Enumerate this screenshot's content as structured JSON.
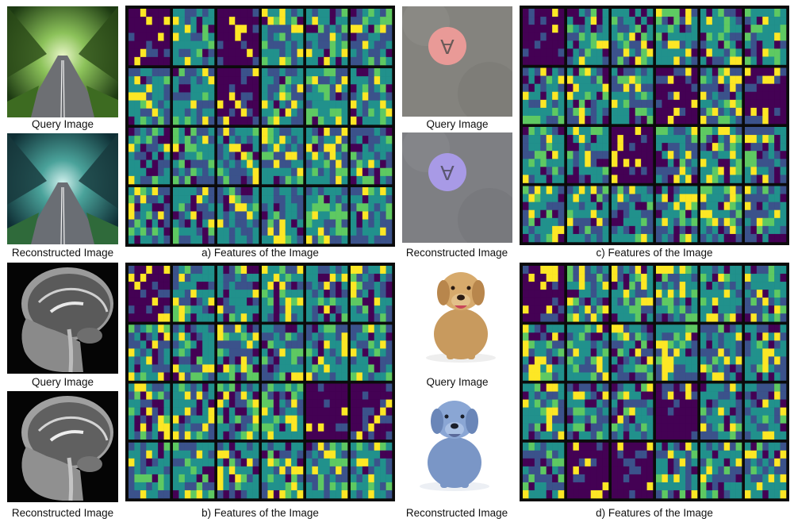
{
  "figure": {
    "panels": [
      {
        "id": "a",
        "query_caption": "Query Image",
        "reconstructed_caption": "Reconstructed Image",
        "features_caption": "a) Features of the Image",
        "query_image": "tree-tunnel-road-photo",
        "reconstructed_image": "tree-tunnel-road-photo-tinted",
        "grid": {
          "rows": 4,
          "cols": 6
        }
      },
      {
        "id": "b",
        "query_caption": "Query Image",
        "reconstructed_caption": "Reconstructed Image",
        "features_caption": "b) Features of the Image",
        "query_image": "brain-mri-sagittal",
        "reconstructed_image": "brain-mri-sagittal",
        "grid": {
          "rows": 4,
          "cols": 6
        }
      },
      {
        "id": "c",
        "query_caption": "Query Image",
        "reconstructed_caption": "Reconstructed Image",
        "features_caption": "c) Features of the Image",
        "query_image": "pink-disk-letter-a",
        "reconstructed_image": "purple-disk-letter-a",
        "grid": {
          "rows": 4,
          "cols": 6
        }
      },
      {
        "id": "d",
        "query_caption": "Query Image",
        "reconstructed_caption": "Reconstructed Image",
        "features_caption": "d) Features of the Image",
        "query_image": "sitting-dog-photo",
        "reconstructed_image": "sitting-dog-photo-blue",
        "grid": {
          "rows": 4,
          "cols": 6
        }
      }
    ],
    "colors": {
      "viridis_dark": "#440154",
      "viridis_blue": "#3b528b",
      "viridis_teal": "#21918c",
      "viridis_green": "#5ec962",
      "viridis_yellow": "#fde725",
      "grid_line": "#0b0b0b"
    }
  }
}
